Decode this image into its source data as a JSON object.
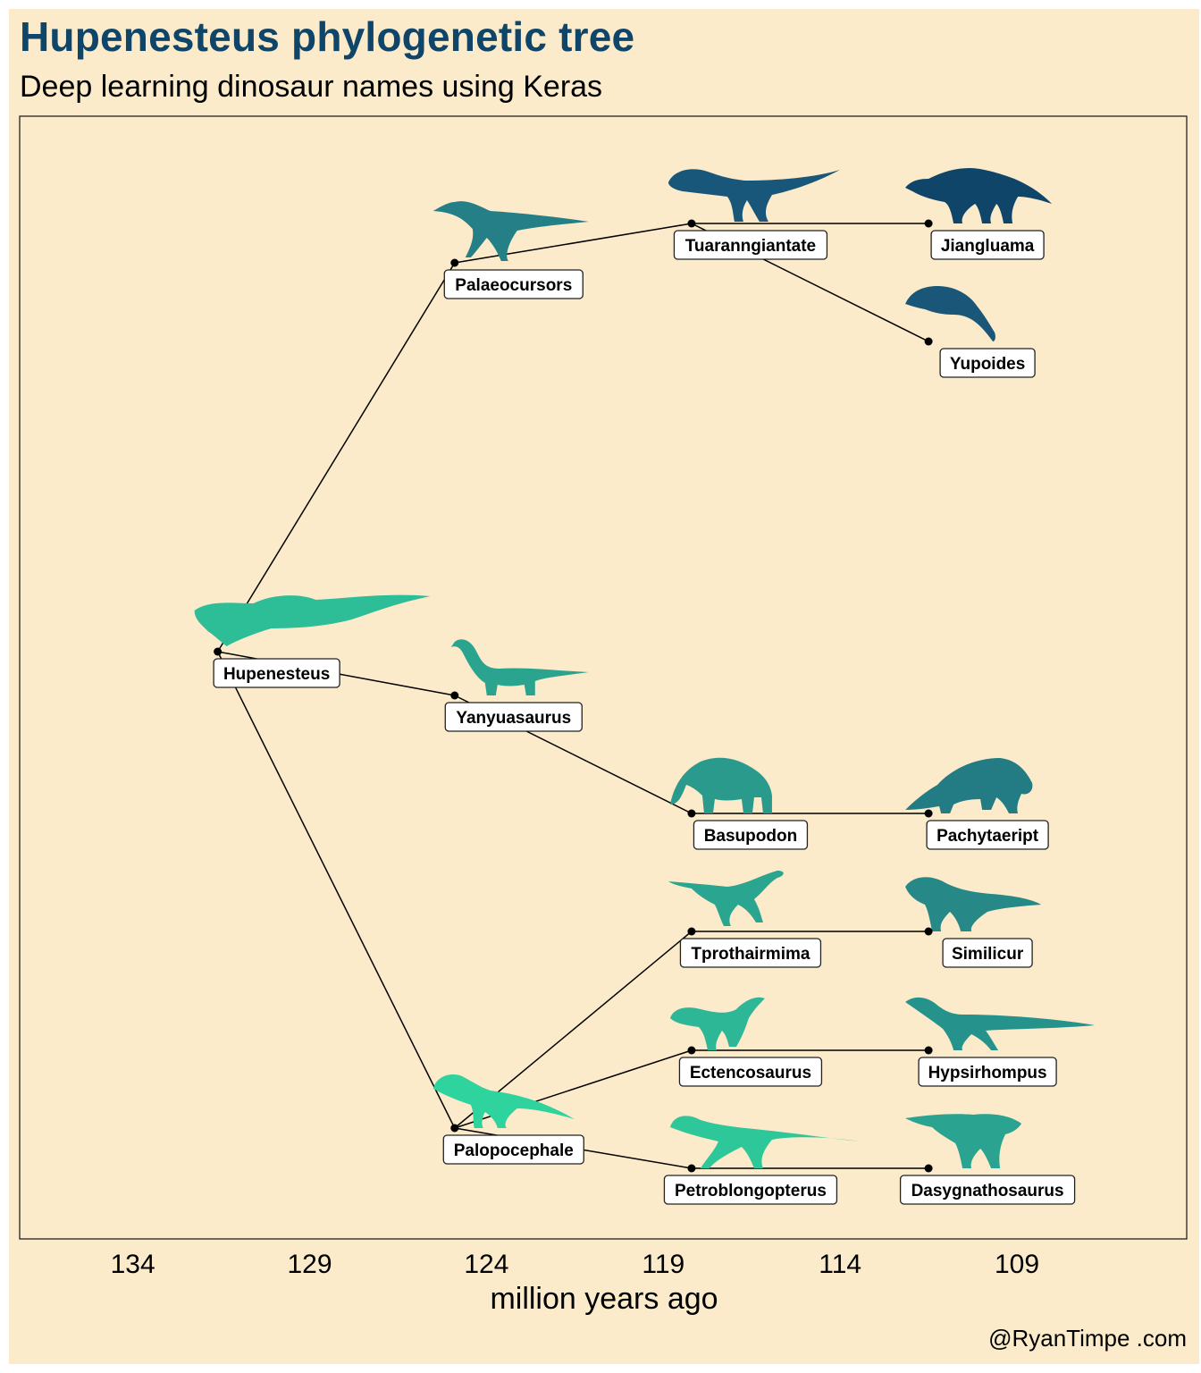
{
  "title": "Hupenesteus phylogenetic tree",
  "subtitle": "Deep learning dinosaur names using Keras",
  "caption": "@RyanTimpe .com",
  "colors": {
    "background": "#fbebcb",
    "title": "#0e4569",
    "palette_dark": "#0e4569",
    "palette_light": "#2fd39e"
  },
  "chart_data": {
    "type": "tree",
    "xlabel": "million years ago",
    "x_ticks": [
      "134",
      "129",
      "124",
      "119",
      "114",
      "109"
    ],
    "x_range": [
      137.2,
      104.2
    ],
    "nodes": [
      {
        "name": "Hupenesteus",
        "x": 131.6,
        "color": "#2dbd97",
        "icon": "spinosaur-silhouette"
      },
      {
        "name": "Palaeocursors",
        "x": 124.9,
        "color": "#247f86",
        "icon": "theropod-silhouette"
      },
      {
        "name": "Yanyuasaurus",
        "x": 124.9,
        "color": "#2aa48f",
        "icon": "sauropod-silhouette"
      },
      {
        "name": "Palopocephale",
        "x": 124.9,
        "color": "#2fd39e",
        "icon": "pachycephalosaur-silhouette"
      },
      {
        "name": "Tuaranngiantate",
        "x": 118.2,
        "color": "#18567a",
        "icon": "tyrannosaur-silhouette"
      },
      {
        "name": "Basupodon",
        "x": 118.2,
        "color": "#2a9a8c",
        "icon": "elephant-silhouette"
      },
      {
        "name": "Tprothairmima",
        "x": 118.2,
        "color": "#2aa58f",
        "icon": "raptor-silhouette"
      },
      {
        "name": "Ectencosaurus",
        "x": 118.2,
        "color": "#2db796",
        "icon": "prosauropod-silhouette"
      },
      {
        "name": "Petroblongopterus",
        "x": 118.2,
        "color": "#2ec79a",
        "icon": "dilophosaur-silhouette"
      },
      {
        "name": "Jiangluama",
        "x": 111.5,
        "color": "#0e4569",
        "icon": "stegosaur-silhouette"
      },
      {
        "name": "Yupoides",
        "x": 111.5,
        "color": "#1a5677",
        "icon": "leaping-silhouette"
      },
      {
        "name": "Pachytaeript",
        "x": 111.5,
        "color": "#237b84",
        "icon": "ankylosaur-silhouette"
      },
      {
        "name": "Similicur",
        "x": 111.5,
        "color": "#268887",
        "icon": "carnosaur-silhouette"
      },
      {
        "name": "Hypsirhompus",
        "x": 111.5,
        "color": "#25938b",
        "icon": "ornithomimid-silhouette"
      },
      {
        "name": "Dasygnathosaurus",
        "x": 111.5,
        "color": "#2aa490",
        "icon": "hadrosaur-silhouette"
      }
    ],
    "edges": [
      [
        "Hupenesteus",
        "Palaeocursors"
      ],
      [
        "Hupenesteus",
        "Yanyuasaurus"
      ],
      [
        "Hupenesteus",
        "Palopocephale"
      ],
      [
        "Palaeocursors",
        "Tuaranngiantate"
      ],
      [
        "Tuaranngiantate",
        "Jiangluama"
      ],
      [
        "Tuaranngiantate",
        "Yupoides"
      ],
      [
        "Yanyuasaurus",
        "Basupodon"
      ],
      [
        "Basupodon",
        "Pachytaeript"
      ],
      [
        "Palopocephale",
        "Tprothairmima"
      ],
      [
        "Palopocephale",
        "Ectencosaurus"
      ],
      [
        "Palopocephale",
        "Petroblongopterus"
      ],
      [
        "Tprothairmima",
        "Similicur"
      ],
      [
        "Ectencosaurus",
        "Hypsirhompus"
      ],
      [
        "Petroblongopterus",
        "Dasygnathosaurus"
      ]
    ]
  }
}
